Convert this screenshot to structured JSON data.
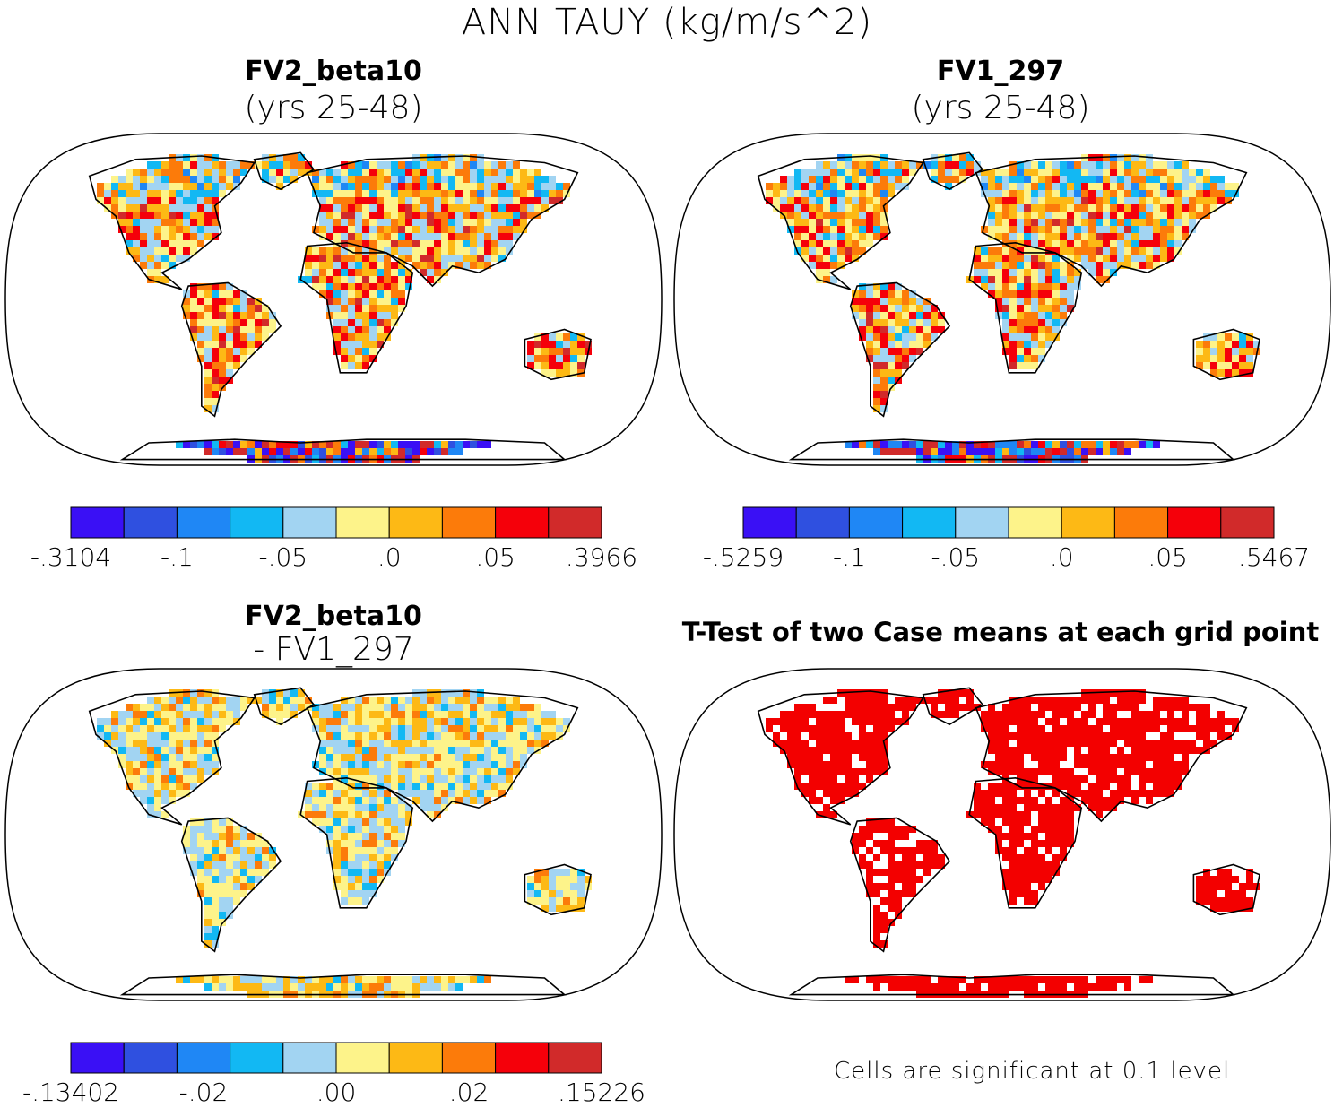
{
  "title": "ANN TAUY (kg/m/s^2)",
  "panels": [
    {
      "id": "p1",
      "title": "FV2_beta10",
      "subtitle": "(yrs 25-48)",
      "colorbar_labels": [
        "-.3104",
        "-.1",
        "-.05",
        ".0",
        ".05",
        ".3966"
      ]
    },
    {
      "id": "p2",
      "title": "FV1_297",
      "subtitle": "(yrs 25-48)",
      "colorbar_labels": [
        "-.5259",
        "-.1",
        "-.05",
        ".0",
        ".05",
        ".5467"
      ]
    },
    {
      "id": "p3",
      "title": "FV2_beta10",
      "subtitle": "- FV1_297",
      "colorbar_labels": [
        "-.13402",
        "-.02",
        ".00",
        ".02",
        ".15226"
      ]
    },
    {
      "id": "p4",
      "title": "T-Test of two Case means at each grid point",
      "subtitle": "",
      "note": "Cells are significant at 0.1 level"
    }
  ],
  "colors": {
    "scale": [
      "#3a10f5",
      "#2f50e0",
      "#1f87f5",
      "#12b8f3",
      "#a2d4f2",
      "#fdf38a",
      "#fdb915",
      "#fc7b0a",
      "#f5000a",
      "#d12a2a"
    ],
    "significant": "#f30000",
    "outline": "#000000"
  },
  "chart_data": [
    {
      "type": "heatmap",
      "title": "FV2_beta10 (yrs 25-48)",
      "variable": "ANN TAUY",
      "units": "kg/m/s^2",
      "contour_levels": [
        -0.3104,
        -0.1,
        -0.05,
        0.0,
        0.05,
        0.3966
      ],
      "projection": "Robinson"
    },
    {
      "type": "heatmap",
      "title": "FV1_297 (yrs 25-48)",
      "variable": "ANN TAUY",
      "units": "kg/m/s^2",
      "contour_levels": [
        -0.5259,
        -0.1,
        -0.05,
        0.0,
        0.05,
        0.5467
      ],
      "projection": "Robinson"
    },
    {
      "type": "heatmap",
      "title": "FV2_beta10 - FV1_297",
      "variable": "ANN TAUY",
      "units": "kg/m/s^2",
      "contour_levels": [
        -0.13402,
        -0.02,
        0.0,
        0.02,
        0.15226
      ],
      "projection": "Robinson"
    },
    {
      "type": "heatmap",
      "title": "T-Test of two Case means at each grid point",
      "significance_level": 0.1,
      "projection": "Robinson"
    }
  ]
}
